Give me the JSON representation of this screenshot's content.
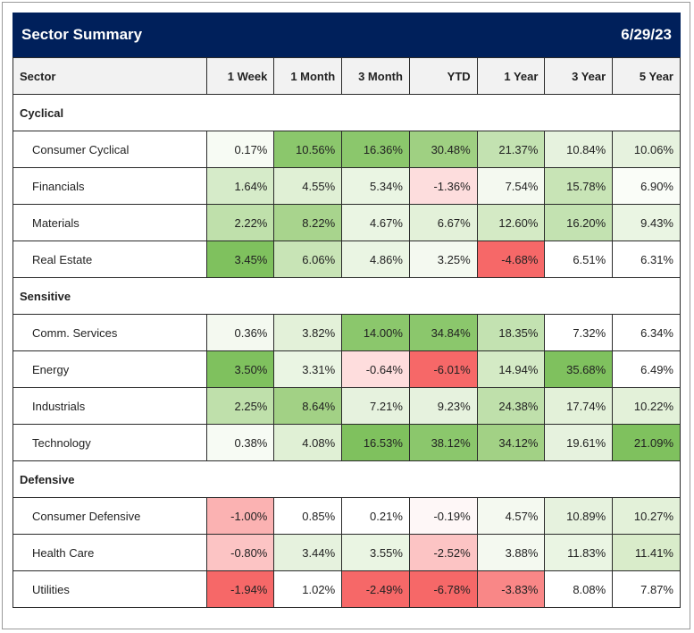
{
  "title": "Sector Summary",
  "date": "6/29/23",
  "columns": [
    "Sector",
    "1 Week",
    "1 Month",
    "3 Month",
    "YTD",
    "1 Year",
    "3 Year",
    "5 Year"
  ],
  "groups": [
    {
      "name": "Cyclical",
      "rows": [
        {
          "sector": "Consumer Cyclical",
          "values": [
            "0.17%",
            "10.56%",
            "16.36%",
            "30.48%",
            "21.37%",
            "10.84%",
            "10.06%"
          ],
          "colors": [
            "#f7fbf4",
            "#8bc76c",
            "#8bc76c",
            "#9fd082",
            "#c3e2b1",
            "#e6f2de",
            "#e6f2de"
          ]
        },
        {
          "sector": "Financials",
          "values": [
            "1.64%",
            "4.55%",
            "5.34%",
            "-1.36%",
            "7.54%",
            "15.78%",
            "6.90%"
          ],
          "colors": [
            "#d6ebc9",
            "#e0f0d5",
            "#eaf5e3",
            "#fddddd",
            "#f4f9f0",
            "#c8e4b6",
            "#fafdf8"
          ]
        },
        {
          "sector": "Materials",
          "values": [
            "2.22%",
            "8.22%",
            "4.67%",
            "6.67%",
            "12.60%",
            "16.20%",
            "9.43%"
          ],
          "colors": [
            "#bfe0ab",
            "#a8d48d",
            "#eaf5e3",
            "#e3f1d9",
            "#d4eac5",
            "#c3e2b1",
            "#eaf5e3"
          ]
        },
        {
          "sector": "Real Estate",
          "values": [
            "3.45%",
            "6.06%",
            "4.86%",
            "3.25%",
            "-4.68%",
            "6.51%",
            "6.31%"
          ],
          "colors": [
            "#7fc15e",
            "#c8e4b6",
            "#eaf5e3",
            "#f4f9f0",
            "#f66868",
            "#ffffff",
            "#ffffff"
          ]
        }
      ]
    },
    {
      "name": "Sensitive",
      "rows": [
        {
          "sector": "Comm. Services",
          "values": [
            "0.36%",
            "3.82%",
            "14.00%",
            "34.84%",
            "18.35%",
            "7.32%",
            "6.34%"
          ],
          "colors": [
            "#f4f9f0",
            "#e3f1d9",
            "#8bc76c",
            "#8bc76c",
            "#c3e2b1",
            "#ffffff",
            "#ffffff"
          ]
        },
        {
          "sector": "Energy",
          "values": [
            "3.50%",
            "3.31%",
            "-0.64%",
            "-6.01%",
            "14.94%",
            "35.68%",
            "6.49%"
          ],
          "colors": [
            "#7fc15e",
            "#eaf5e3",
            "#fedddd",
            "#f66868",
            "#d4eac5",
            "#7fc15e",
            "#ffffff"
          ]
        },
        {
          "sector": "Industrials",
          "values": [
            "2.25%",
            "8.64%",
            "7.21%",
            "9.23%",
            "24.38%",
            "17.74%",
            "10.22%"
          ],
          "colors": [
            "#bfe0ab",
            "#a2d185",
            "#e6f2de",
            "#e6f2de",
            "#bfe0ab",
            "#e3f1d9",
            "#e3f1d9"
          ]
        },
        {
          "sector": "Technology",
          "values": [
            "0.38%",
            "4.08%",
            "16.53%",
            "38.12%",
            "34.12%",
            "19.61%",
            "21.09%"
          ],
          "colors": [
            "#f7fbf4",
            "#e0f0d5",
            "#7fc15e",
            "#8bc76c",
            "#a2d185",
            "#e6f2de",
            "#7fc15e"
          ]
        }
      ]
    },
    {
      "name": "Defensive",
      "rows": [
        {
          "sector": "Consumer Defensive",
          "values": [
            "-1.00%",
            "0.85%",
            "0.21%",
            "-0.19%",
            "4.57%",
            "10.89%",
            "10.27%"
          ],
          "colors": [
            "#fbb2b2",
            "#ffffff",
            "#ffffff",
            "#fef7f7",
            "#f4f9f0",
            "#e6f2de",
            "#e3f1d9"
          ]
        },
        {
          "sector": "Health Care",
          "values": [
            "-0.80%",
            "3.44%",
            "3.55%",
            "-2.52%",
            "3.88%",
            "11.83%",
            "11.41%"
          ],
          "colors": [
            "#fcc4c4",
            "#e6f2de",
            "#eaf5e3",
            "#fcc4c4",
            "#f4f9f0",
            "#eaf5e3",
            "#d9ecca"
          ]
        },
        {
          "sector": "Utilities",
          "values": [
            "-1.94%",
            "1.02%",
            "-2.49%",
            "-6.78%",
            "-3.83%",
            "8.08%",
            "7.87%"
          ],
          "colors": [
            "#f66868",
            "#ffffff",
            "#f66868",
            "#f66868",
            "#f98787",
            "#ffffff",
            "#ffffff"
          ]
        }
      ]
    }
  ]
}
